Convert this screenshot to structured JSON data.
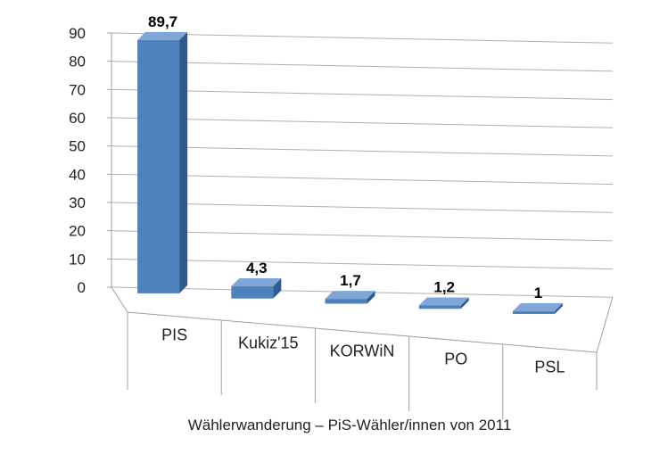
{
  "chart_data": {
    "type": "bar",
    "categories": [
      "PIS",
      "Kukiz'15",
      "KORWiN",
      "PO",
      "PSL"
    ],
    "values": [
      89.7,
      4.3,
      1.7,
      1.2,
      1
    ],
    "data_labels": [
      "89,7",
      "4,3",
      "1,7",
      "1,2",
      "1"
    ],
    "ylim": [
      0,
      90
    ],
    "yticks": [
      "0",
      "10",
      "20",
      "30",
      "40",
      "50",
      "60",
      "70",
      "80",
      "90"
    ],
    "xlabel": "Wählerwanderung – PiS-Wähler/innen  von 2011",
    "grid": true,
    "legend": "none",
    "style": "3d-column"
  },
  "colors": {
    "bar_front": "#4f81bd",
    "bar_side": "#2f5a8f",
    "bar_top": "#7ea6d6",
    "grid": "#b0b0b0",
    "axis": "#a0a0a0"
  }
}
